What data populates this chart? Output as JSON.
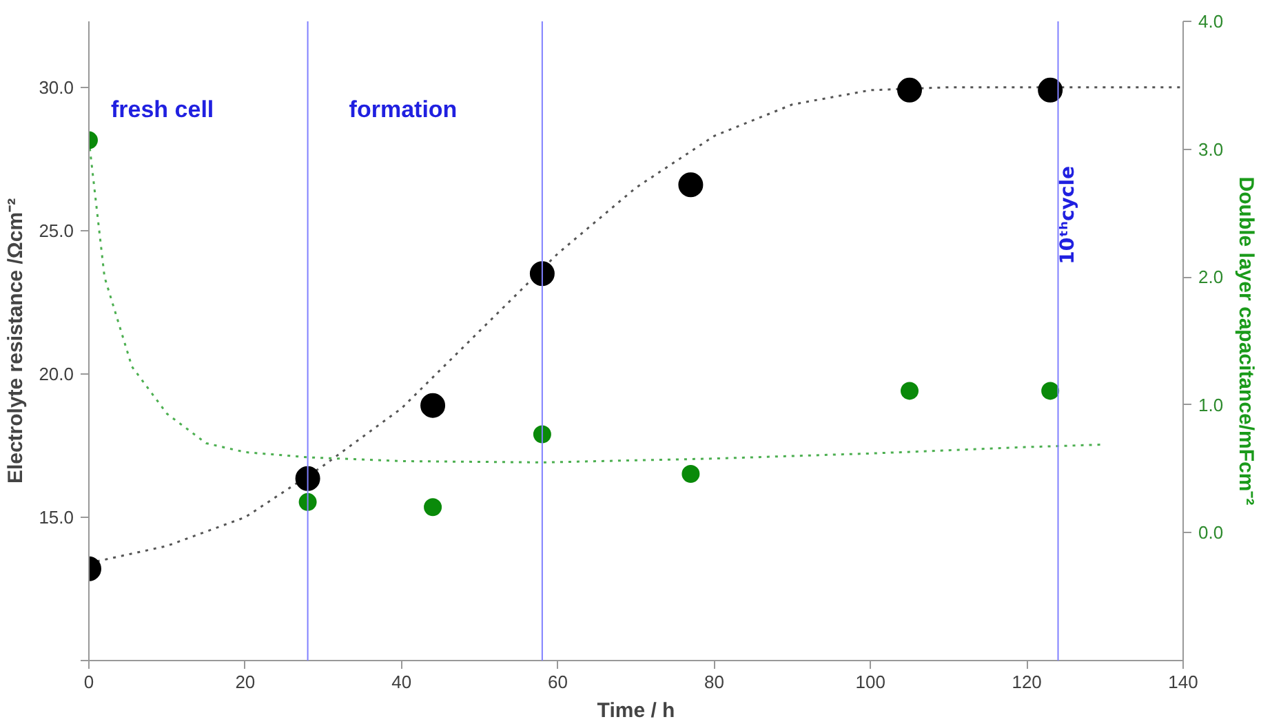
{
  "chart_data": {
    "type": "scatter",
    "xlabel": "Time / h",
    "ylabel": "Electrolyte resistance /Ωcm⁻²",
    "y2label": "Double layer capacitance/mFcm⁻²",
    "xlim": [
      0,
      140
    ],
    "xticks": [
      0,
      20,
      40,
      60,
      80,
      100,
      120,
      140
    ],
    "ylim": [
      10,
      32.3
    ],
    "yticks": [
      {
        "value": 10,
        "label": null
      },
      {
        "value": 15,
        "label": "15.0"
      },
      {
        "value": 20,
        "label": "20.0"
      },
      {
        "value": 25,
        "label": "25.0"
      },
      {
        "value": 30,
        "label": "30.0"
      }
    ],
    "y2lim": [
      -1,
      4
    ],
    "y2ticks": [
      {
        "value": 0,
        "label": "0.0"
      },
      {
        "value": 1,
        "label": "1.0"
      },
      {
        "value": 2,
        "label": "2.0"
      },
      {
        "value": 3,
        "label": "3.0"
      },
      {
        "value": 4,
        "label": "4.0"
      }
    ],
    "grid": false,
    "series": [
      {
        "type": "line",
        "line_style": "dotted",
        "color": "#555555",
        "x": [
          0,
          10,
          20,
          30,
          40,
          50,
          60,
          70,
          80,
          90,
          100,
          110,
          120,
          130,
          140
        ],
        "values": [
          13.4,
          14.0,
          15.0,
          16.8,
          18.8,
          21.5,
          24.2,
          26.5,
          28.3,
          29.4,
          29.9,
          30.0,
          30.0,
          30.0,
          30.0
        ]
      },
      {
        "type": "line",
        "line_style": "dotted",
        "color": "#4caf50",
        "axis": "y2",
        "x": [
          0,
          2,
          5.5,
          10,
          15,
          20,
          28,
          40,
          58,
          80,
          100,
          120,
          130
        ],
        "values": [
          3.07,
          2.0,
          1.3,
          0.93,
          0.7,
          0.63,
          0.59,
          0.56,
          0.55,
          0.58,
          0.62,
          0.67,
          0.69
        ]
      },
      {
        "marker": "circle",
        "color": "#000000",
        "x": [
          0,
          28,
          44,
          58,
          77,
          105,
          123
        ],
        "values": [
          13.2,
          16.35,
          18.9,
          23.5,
          26.6,
          29.9,
          29.9
        ]
      },
      {
        "marker": "circle",
        "color": "#0a8a0a",
        "axis": "y2",
        "x": [
          0,
          28,
          44,
          58,
          77,
          105,
          123
        ],
        "values": [
          3.07,
          0.24,
          0.2,
          0.77,
          0.46,
          1.11,
          1.11
        ]
      }
    ],
    "ref_lines": [
      {
        "axis": "x",
        "value": 28,
        "color": "#8080ff"
      },
      {
        "axis": "x",
        "value": 58,
        "color": "#8080ff"
      },
      {
        "axis": "x",
        "value": 124,
        "color": "#8080ff",
        "label": "10ᵗʰcycle"
      }
    ],
    "annotations": [
      "fresh cell",
      "formation"
    ]
  }
}
